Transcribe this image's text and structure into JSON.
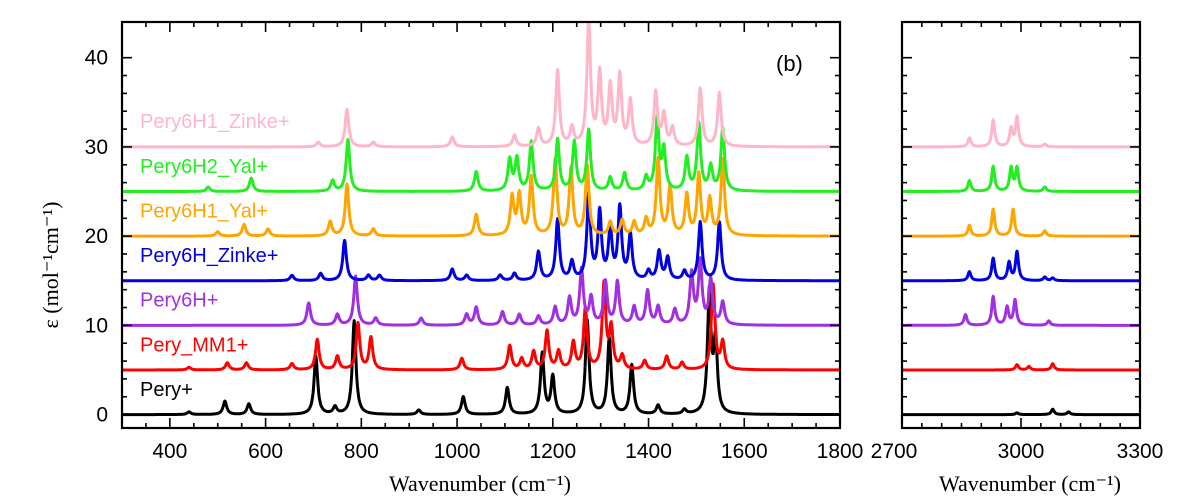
{
  "chart_data": {
    "type": "line",
    "ylabel": "ε (mol⁻¹cm⁻¹)",
    "panel_label": "(b)",
    "ylim": [
      -1.5,
      44
    ],
    "yticks": [
      "0",
      "10",
      "20",
      "30",
      "40"
    ],
    "panels": [
      {
        "xlabel": "Wavenumber (cm⁻¹)",
        "xlim": [
          300,
          1800
        ],
        "xticks": [
          "400",
          "600",
          "800",
          "1000",
          "1200",
          "1400",
          "1600",
          "1800"
        ]
      },
      {
        "xlabel": "Wavenumber (cm⁻¹)",
        "xlim": [
          2700,
          3300
        ],
        "xticks": [
          "2700",
          "3000",
          "3300"
        ]
      }
    ],
    "series": [
      {
        "name": "Pery+",
        "color": "#000000",
        "offset": 0,
        "peaks": [
          [
            440,
            0.3
          ],
          [
            515,
            1.5
          ],
          [
            565,
            1.2
          ],
          [
            705,
            6.5
          ],
          [
            745,
            0.8
          ],
          [
            785,
            10.5
          ],
          [
            920,
            0.5
          ],
          [
            1013,
            2
          ],
          [
            1105,
            3
          ],
          [
            1178,
            6.8
          ],
          [
            1200,
            4.2
          ],
          [
            1272,
            10.5
          ],
          [
            1318,
            8.5
          ],
          [
            1365,
            5.5
          ],
          [
            1420,
            1
          ],
          [
            1475,
            0.5
          ],
          [
            1527,
            13.5
          ],
          [
            1540,
            8
          ],
          [
            2990,
            0.2
          ],
          [
            3080,
            0.6
          ],
          [
            3120,
            0.3
          ]
        ]
      },
      {
        "name": "Pery_MM1+",
        "color": "#ff0000",
        "offset": 5,
        "peaks": [
          [
            440,
            0.3
          ],
          [
            520,
            0.8
          ],
          [
            560,
            0.8
          ],
          [
            655,
            0.7
          ],
          [
            708,
            3.4
          ],
          [
            750,
            1.5
          ],
          [
            793,
            5.2
          ],
          [
            820,
            3.6
          ],
          [
            1010,
            1.3
          ],
          [
            1110,
            2.7
          ],
          [
            1135,
            1.2
          ],
          [
            1160,
            2
          ],
          [
            1188,
            4.3
          ],
          [
            1212,
            2
          ],
          [
            1243,
            3
          ],
          [
            1268,
            6.8
          ],
          [
            1307,
            9.5
          ],
          [
            1322,
            4.5
          ],
          [
            1345,
            1.5
          ],
          [
            1392,
            1
          ],
          [
            1438,
            1.5
          ],
          [
            1470,
            0.8
          ],
          [
            1535,
            9.5
          ],
          [
            1555,
            3
          ],
          [
            2990,
            0.6
          ],
          [
            3020,
            0.4
          ],
          [
            3080,
            0.7
          ]
        ]
      },
      {
        "name": "Pery6H+",
        "color": "#a030e0",
        "offset": 10,
        "peaks": [
          [
            690,
            2.5
          ],
          [
            750,
            1.2
          ],
          [
            788,
            5.5
          ],
          [
            830,
            0.8
          ],
          [
            925,
            0.8
          ],
          [
            1020,
            1.2
          ],
          [
            1040,
            2
          ],
          [
            1095,
            1.5
          ],
          [
            1130,
            1.2
          ],
          [
            1170,
            1
          ],
          [
            1205,
            2
          ],
          [
            1235,
            3
          ],
          [
            1260,
            6.2
          ],
          [
            1280,
            3
          ],
          [
            1310,
            4.8
          ],
          [
            1335,
            4.8
          ],
          [
            1370,
            2
          ],
          [
            1398,
            3.8
          ],
          [
            1420,
            2
          ],
          [
            1455,
            1.7
          ],
          [
            1490,
            5.7
          ],
          [
            1508,
            7
          ],
          [
            1530,
            5
          ],
          [
            1555,
            2.5
          ],
          [
            2860,
            1.2
          ],
          [
            2930,
            3.2
          ],
          [
            2965,
            2
          ],
          [
            2985,
            2.8
          ],
          [
            3070,
            0.5
          ]
        ]
      },
      {
        "name": "Pery6H_Zinke+",
        "color": "#0000e0",
        "offset": 15,
        "peaks": [
          [
            655,
            0.6
          ],
          [
            715,
            0.8
          ],
          [
            765,
            4.5
          ],
          [
            815,
            0.6
          ],
          [
            838,
            0.6
          ],
          [
            990,
            1.3
          ],
          [
            1020,
            0.6
          ],
          [
            1090,
            0.6
          ],
          [
            1120,
            0.8
          ],
          [
            1170,
            3.2
          ],
          [
            1210,
            6.8
          ],
          [
            1240,
            2
          ],
          [
            1275,
            9.5
          ],
          [
            1298,
            7.5
          ],
          [
            1320,
            5.5
          ],
          [
            1340,
            8
          ],
          [
            1362,
            5
          ],
          [
            1400,
            1
          ],
          [
            1422,
            3.2
          ],
          [
            1440,
            2.5
          ],
          [
            1475,
            1
          ],
          [
            1508,
            6.5
          ],
          [
            1548,
            6.5
          ],
          [
            2870,
            1
          ],
          [
            2930,
            2.5
          ],
          [
            2970,
            2
          ],
          [
            2990,
            3.2
          ],
          [
            3060,
            0.4
          ],
          [
            3080,
            0.3
          ]
        ]
      },
      {
        "name": "Pery6H1_Yal+",
        "color": "#ffa500",
        "offset": 20,
        "peaks": [
          [
            500,
            0.5
          ],
          [
            555,
            1.3
          ],
          [
            605,
            0.8
          ],
          [
            735,
            1.6
          ],
          [
            770,
            5.8
          ],
          [
            825,
            0.8
          ],
          [
            1040,
            2.4
          ],
          [
            1115,
            4.3
          ],
          [
            1130,
            4.5
          ],
          [
            1155,
            6.5
          ],
          [
            1205,
            8.5
          ],
          [
            1238,
            7.5
          ],
          [
            1272,
            7.8
          ],
          [
            1320,
            1.5
          ],
          [
            1345,
            1.7
          ],
          [
            1370,
            1.5
          ],
          [
            1395,
            1.8
          ],
          [
            1420,
            8.5
          ],
          [
            1445,
            5.5
          ],
          [
            1480,
            4.5
          ],
          [
            1505,
            6.8
          ],
          [
            1528,
            4
          ],
          [
            1555,
            8.5
          ],
          [
            2870,
            1.2
          ],
          [
            2930,
            3
          ],
          [
            2980,
            3
          ],
          [
            3060,
            0.6
          ]
        ]
      },
      {
        "name": "Pery6H2_Yal+",
        "color": "#22ee22",
        "offset": 25,
        "peaks": [
          [
            480,
            0.5
          ],
          [
            570,
            1.5
          ],
          [
            740,
            1.2
          ],
          [
            772,
            5.8
          ],
          [
            1040,
            2.2
          ],
          [
            1110,
            3.5
          ],
          [
            1125,
            3.6
          ],
          [
            1155,
            5.5
          ],
          [
            1210,
            5.8
          ],
          [
            1245,
            5.5
          ],
          [
            1275,
            6.8
          ],
          [
            1320,
            1.5
          ],
          [
            1350,
            2
          ],
          [
            1395,
            1.5
          ],
          [
            1418,
            8
          ],
          [
            1432,
            4.5
          ],
          [
            1480,
            3.7
          ],
          [
            1505,
            7.5
          ],
          [
            1530,
            2.7
          ],
          [
            1555,
            7
          ],
          [
            2870,
            1.2
          ],
          [
            2930,
            2.8
          ],
          [
            2975,
            2.6
          ],
          [
            2990,
            2.6
          ],
          [
            3060,
            0.5
          ]
        ]
      },
      {
        "name": "Pery6H1_Zinke+",
        "color": "#ffb6c8",
        "offset": 30,
        "peaks": [
          [
            710,
            0.5
          ],
          [
            770,
            4.2
          ],
          [
            825,
            0.5
          ],
          [
            990,
            1.1
          ],
          [
            1120,
            1.3
          ],
          [
            1170,
            2
          ],
          [
            1210,
            8.5
          ],
          [
            1240,
            2
          ],
          [
            1275,
            14
          ],
          [
            1298,
            8
          ],
          [
            1320,
            6.5
          ],
          [
            1340,
            7.8
          ],
          [
            1362,
            5
          ],
          [
            1415,
            6
          ],
          [
            1432,
            3.5
          ],
          [
            1450,
            2
          ],
          [
            1508,
            6.5
          ],
          [
            1548,
            6
          ],
          [
            2870,
            1
          ],
          [
            2930,
            3
          ],
          [
            2975,
            2
          ],
          [
            2990,
            3.3
          ],
          [
            3060,
            0.3
          ]
        ]
      }
    ]
  }
}
